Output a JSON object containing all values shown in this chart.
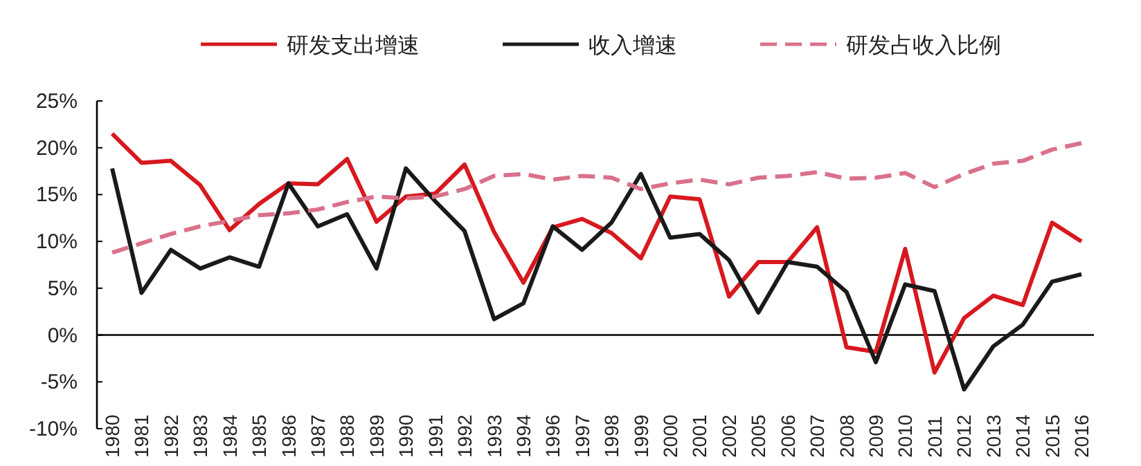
{
  "chart_data": {
    "type": "line",
    "categories": [
      "1980",
      "1981",
      "1982",
      "1983",
      "1984",
      "1985",
      "1986",
      "1987",
      "1988",
      "1989",
      "1990",
      "1991",
      "1992",
      "1993",
      "1994",
      "1996",
      "1997",
      "1998",
      "1999",
      "2000",
      "2001",
      "2002",
      "2005",
      "2006",
      "2007",
      "2008",
      "2009",
      "2010",
      "2011",
      "2012",
      "2013",
      "2014",
      "2015",
      "2016"
    ],
    "series": [
      {
        "name": "研发支出增速",
        "color": "#d7191f",
        "line_style": "solid",
        "values": [
          21.5,
          18.4,
          18.6,
          16,
          11.2,
          14,
          16.2,
          16.1,
          18.8,
          12.1,
          14.8,
          15.1,
          18.2,
          11,
          5.6,
          11.5,
          12.4,
          10.9,
          8.2,
          14.8,
          14.5,
          4.1,
          7.8,
          7.8,
          11.5,
          -1.3,
          -1.8,
          9.2,
          -4,
          1.8,
          4.2,
          3.2,
          12,
          10
        ]
      },
      {
        "name": "收入增速",
        "color": "#1a1a1a",
        "line_style": "solid",
        "values": [
          17.8,
          4.5,
          9.1,
          7.1,
          8.3,
          7.3,
          16.2,
          11.6,
          12.9,
          7.1,
          17.8,
          14.3,
          11.1,
          1.7,
          3.4,
          11.6,
          9.1,
          12,
          17.2,
          10.4,
          10.8,
          8,
          2.4,
          7.8,
          7.3,
          4.6,
          -2.9,
          5.4,
          4.7,
          -5.8,
          -1.2,
          1.1,
          5.7,
          6.5
        ]
      },
      {
        "name": "研发占收入比例",
        "color": "#d9718a",
        "line_style": "dashed",
        "values": [
          8.8,
          9.8,
          10.8,
          11.6,
          12.2,
          12.8,
          13,
          13.4,
          14.2,
          14.8,
          14.6,
          14.8,
          15.6,
          17,
          17.2,
          16.6,
          17,
          16.8,
          15.6,
          16.2,
          16.6,
          16.1,
          16.8,
          17,
          17.4,
          16.7,
          16.8,
          17.3,
          15.8,
          17.2,
          18.3,
          18.6,
          19.8,
          20.5
        ]
      }
    ],
    "ylim": [
      -10,
      25
    ],
    "yticks": [
      {
        "value": -10,
        "label": "-10%"
      },
      {
        "value": -5,
        "label": "-5%"
      },
      {
        "value": 0,
        "label": "0%"
      },
      {
        "value": 5,
        "label": "5%"
      },
      {
        "value": 10,
        "label": "10%"
      },
      {
        "value": 15,
        "label": "15%"
      },
      {
        "value": 20,
        "label": "20%"
      },
      {
        "value": 25,
        "label": "25%"
      }
    ],
    "legend": "top"
  }
}
